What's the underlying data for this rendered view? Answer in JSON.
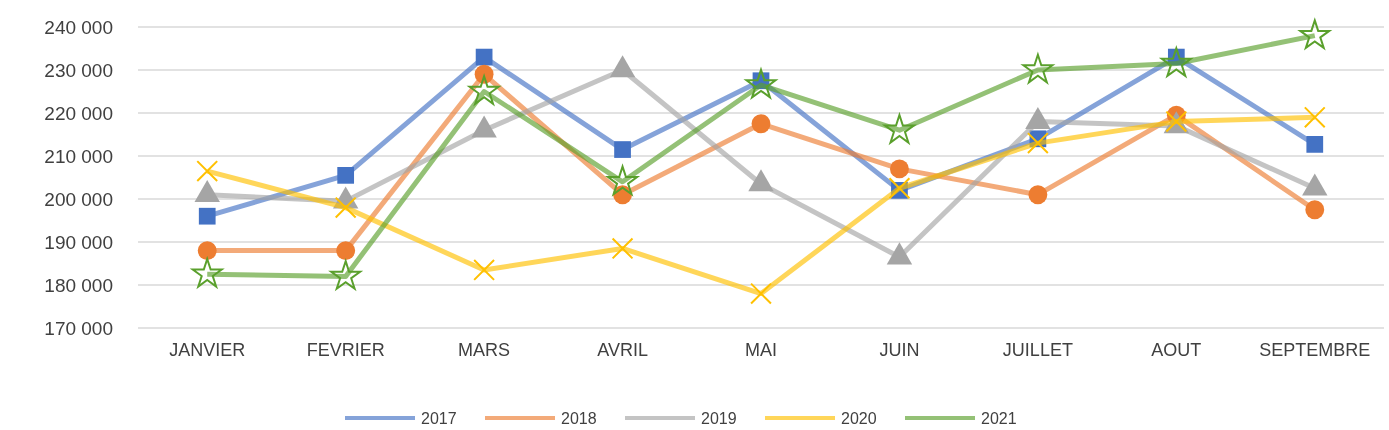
{
  "chart_data": {
    "type": "line",
    "categories": [
      "JANVIER",
      "FEVRIER",
      "MARS",
      "AVRIL",
      "MAI",
      "JUIN",
      "JUILLET",
      "AOUT",
      "SEPTEMBRE"
    ],
    "series": [
      {
        "name": "2017",
        "color": "#4472c4",
        "marker": "square",
        "values": [
          196000,
          205500,
          233000,
          211500,
          227500,
          202000,
          214000,
          233000,
          212700
        ]
      },
      {
        "name": "2018",
        "color": "#ed7d31",
        "marker": "circle",
        "values": [
          188000,
          188000,
          229000,
          201000,
          217500,
          207000,
          201000,
          219500,
          197500
        ]
      },
      {
        "name": "2019",
        "color": "#a5a5a5",
        "marker": "triangle",
        "values": [
          201000,
          199500,
          216000,
          230000,
          203500,
          186500,
          218000,
          217000,
          202500
        ]
      },
      {
        "name": "2020",
        "color": "#ffc000",
        "marker": "cross",
        "values": [
          206500,
          198000,
          183500,
          188500,
          178000,
          202500,
          213000,
          218000,
          219000
        ]
      },
      {
        "name": "2021",
        "color": "#5aa02c",
        "marker": "star",
        "values": [
          182500,
          182000,
          225000,
          204000,
          226500,
          216000,
          230000,
          231500,
          238000
        ]
      }
    ],
    "ylim": [
      170000,
      240000
    ],
    "yticks": [
      {
        "value": 170000,
        "label": "170 000"
      },
      {
        "value": 180000,
        "label": "180 000"
      },
      {
        "value": 190000,
        "label": "190 000"
      },
      {
        "value": 200000,
        "label": "200 000"
      },
      {
        "value": 210000,
        "label": "210 000"
      },
      {
        "value": 220000,
        "label": "220 000"
      },
      {
        "value": 230000,
        "label": "230 000"
      },
      {
        "value": 240000,
        "label": "240 000"
      }
    ],
    "grid": "y",
    "legend": "bottom",
    "line_style": "solid"
  }
}
